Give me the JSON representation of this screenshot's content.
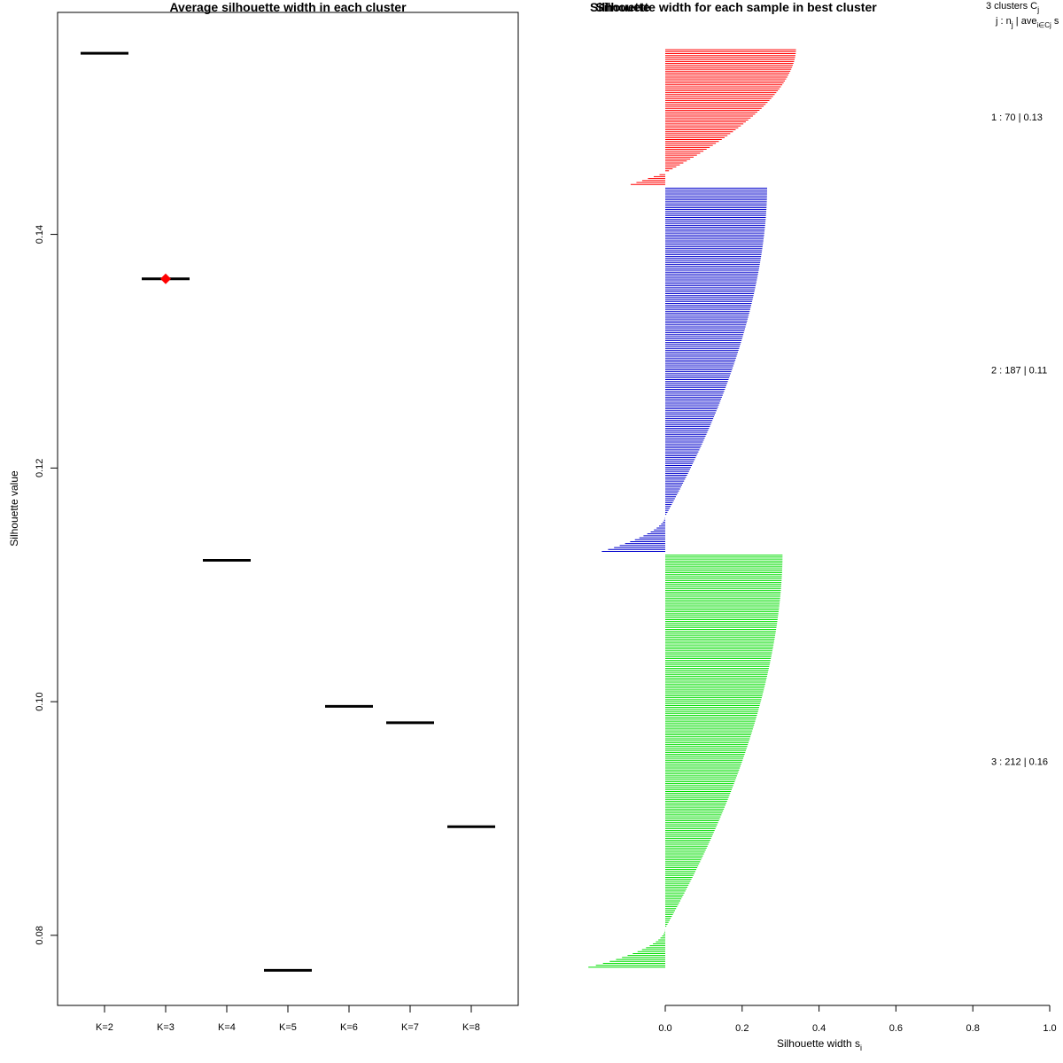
{
  "chart_data": [
    {
      "type": "line",
      "title": "Average silhouette width in each cluster",
      "xlabel": "",
      "ylabel": "Silhouette value",
      "categories": [
        "K=2",
        "K=3",
        "K=4",
        "K=5",
        "K=6",
        "K=7",
        "K=8"
      ],
      "values": [
        0.1555,
        0.1362,
        0.1121,
        0.077,
        0.0996,
        0.0982,
        0.0893
      ],
      "best": {
        "category": "K=3",
        "value": 0.1362,
        "marker_color": "#ff0000"
      },
      "ylim": [
        0.074,
        0.159
      ],
      "yticks": [
        0.08,
        0.1,
        0.12,
        0.14
      ],
      "ytick_labels": [
        "0.08",
        "0.10",
        "0.12",
        "0.14"
      ]
    },
    {
      "type": "bar",
      "orientation": "horizontal",
      "title": "Silhouette width for each sample in best cluster",
      "overlapped_title_fragment": "Silhouette",
      "xlabel": "Silhouette width s",
      "xlabel_subscript": "i",
      "xlim": [
        0.0,
        1.0
      ],
      "xticks": [
        0.0,
        0.2,
        0.4,
        0.6,
        0.8,
        1.0
      ],
      "xtick_labels": [
        "0.0",
        "0.2",
        "0.4",
        "0.6",
        "0.8",
        "1.0"
      ],
      "legend": {
        "line1": "3  clusters  C",
        "line1_sub": "j",
        "line2": "j :  n",
        "line2_sub": "j",
        "line2_rest": " | ave",
        "line2_sub2": "i∈Cj",
        "line2_end": "  s"
      },
      "clusters": [
        {
          "id": 1,
          "n": 70,
          "avg": "0.13",
          "label": "1 :  70  |  0.13",
          "color": "#ff0000",
          "max": 0.34,
          "min": -0.09,
          "neg_count": 6,
          "neg_ramp_power": 1.0
        },
        {
          "id": 2,
          "n": 187,
          "avg": "0.11",
          "label": "2 :  187  |  0.11",
          "color": "#0000cc",
          "max": 0.265,
          "min": -0.165,
          "neg_count": 18,
          "neg_ramp_power": 0.55
        },
        {
          "id": 3,
          "n": 212,
          "avg": "0.16",
          "label": "3 :  212  |  0.16",
          "color": "#00dd00",
          "max": 0.305,
          "min": -0.2,
          "neg_count": 20,
          "neg_ramp_power": 0.5
        }
      ]
    }
  ]
}
